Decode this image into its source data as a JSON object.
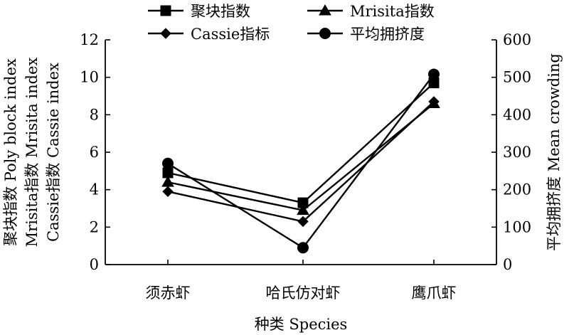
{
  "chart_data": {
    "type": "line",
    "categories": [
      "须赤虾",
      "哈氏仿对虾",
      "鹰爪虾"
    ],
    "xlabel": "种类 Species",
    "ylabel_left": [
      "聚块指数 Poly block index",
      "Mrisita指数 Mrisita index",
      "Cassie指数 Cassie index"
    ],
    "ylabel_right": "平均拥挤度 Mean crowding",
    "ylim_left": [
      0,
      12
    ],
    "yticks_left": [
      "0",
      "2",
      "4",
      "6",
      "8",
      "10",
      "12"
    ],
    "ylim_right": [
      0,
      600
    ],
    "yticks_right": [
      "0",
      "100",
      "200",
      "300",
      "400",
      "500",
      "600"
    ],
    "grid": false,
    "legend_position": "top-center",
    "series": [
      {
        "name": "聚块指数",
        "axis": "left",
        "marker": "square",
        "values": [
          4.9,
          3.3,
          9.7
        ]
      },
      {
        "name": "Mrisita指数",
        "axis": "left",
        "marker": "triangle",
        "values": [
          4.4,
          2.9,
          8.6
        ]
      },
      {
        "name": "Cassie指标",
        "axis": "left",
        "marker": "diamond",
        "values": [
          3.9,
          2.3,
          8.7
        ]
      },
      {
        "name": "平均拥挤度",
        "axis": "right",
        "marker": "circle",
        "values": [
          270,
          45,
          508
        ]
      }
    ]
  }
}
